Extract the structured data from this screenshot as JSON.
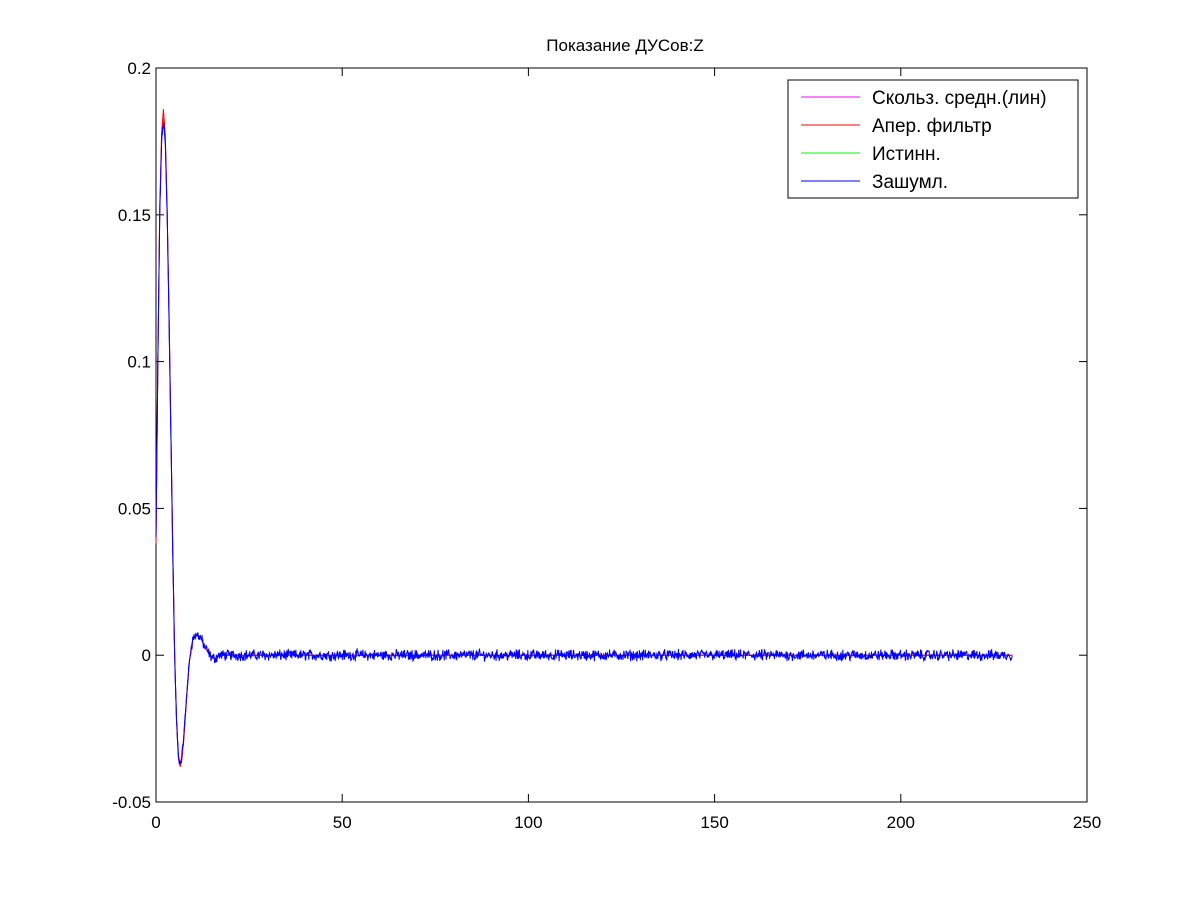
{
  "chart_data": {
    "type": "line",
    "title": "Показание ДУСов:Z",
    "xlabel": "",
    "ylabel": "",
    "xlim": [
      0,
      250
    ],
    "ylim": [
      -0.05,
      0.2
    ],
    "xticks": [
      0,
      50,
      100,
      150,
      200,
      250
    ],
    "xtick_labels": [
      "0",
      "50",
      "100",
      "150",
      "200",
      "250"
    ],
    "yticks": [
      -0.05,
      0,
      0.05,
      0.1,
      0.15,
      0.2
    ],
    "ytick_labels": [
      "-0.05",
      "0",
      "0.05",
      "0.1",
      "0.15",
      "0.2"
    ],
    "grid": false,
    "legend_position": "top-right",
    "series": [
      {
        "name": "Скольз. средн.(лин)",
        "color": "#ff00ff",
        "x": [
          0,
          0.5,
          1,
          1.5,
          2,
          2.5,
          3,
          3.5,
          4,
          4.5,
          5,
          5.5,
          6,
          6.5,
          7,
          7.5,
          8,
          8.5,
          9,
          9.5,
          10,
          11,
          12,
          13,
          14,
          15,
          16,
          17,
          18,
          19,
          20,
          22,
          25,
          30,
          40,
          60,
          100,
          150,
          200,
          230
        ],
        "y": [
          0.04,
          0.1,
          0.15,
          0.175,
          0.183,
          0.175,
          0.15,
          0.115,
          0.075,
          0.035,
          0.0,
          -0.022,
          -0.034,
          -0.037,
          -0.034,
          -0.027,
          -0.018,
          -0.009,
          -0.002,
          0.003,
          0.006,
          0.007,
          0.006,
          0.003,
          0.001,
          -0.001,
          -0.001,
          0.0,
          0.0,
          0.0,
          0.0,
          0.0,
          0.0,
          0.0,
          0.0,
          0.0,
          0.0,
          0.0,
          0.0,
          0.0
        ]
      },
      {
        "name": "Апер. фильтр",
        "color": "#ff0000",
        "x": [
          0,
          0.5,
          1,
          1.5,
          2,
          2.5,
          3,
          3.5,
          4,
          4.5,
          5,
          5.5,
          6,
          6.5,
          7,
          7.5,
          8,
          8.5,
          9,
          9.5,
          10,
          11,
          12,
          13,
          14,
          15,
          16,
          17,
          18,
          19,
          20,
          22,
          25,
          30,
          40,
          60,
          100,
          150,
          200,
          230
        ],
        "y": [
          0.038,
          0.1,
          0.152,
          0.178,
          0.186,
          0.177,
          0.152,
          0.117,
          0.077,
          0.037,
          0.001,
          -0.022,
          -0.035,
          -0.038,
          -0.035,
          -0.028,
          -0.019,
          -0.009,
          -0.002,
          0.003,
          0.006,
          0.007,
          0.006,
          0.003,
          0.001,
          -0.001,
          -0.001,
          0.0,
          0.0,
          0.0,
          0.0,
          0.0,
          0.0,
          0.0,
          0.0,
          0.0,
          0.0,
          0.0,
          0.0,
          0.0
        ]
      },
      {
        "name": "Истинн.",
        "color": "#00ff00",
        "x": [
          0,
          0.5,
          1,
          1.5,
          2,
          2.5,
          3,
          3.5,
          4,
          4.5,
          5,
          5.5,
          6,
          6.5,
          7,
          7.5,
          8,
          8.5,
          9,
          9.5,
          10,
          11,
          12,
          13,
          14,
          15,
          16,
          17,
          18,
          19,
          20,
          22,
          25,
          30,
          40,
          60,
          100,
          150,
          200,
          230
        ],
        "y": [
          0.04,
          0.1,
          0.15,
          0.175,
          0.182,
          0.174,
          0.15,
          0.115,
          0.075,
          0.035,
          0.0,
          -0.022,
          -0.034,
          -0.037,
          -0.034,
          -0.027,
          -0.018,
          -0.009,
          -0.002,
          0.003,
          0.006,
          0.007,
          0.006,
          0.003,
          0.001,
          -0.001,
          -0.001,
          0.0,
          0.0,
          0.0,
          0.0,
          0.0,
          0.0,
          0.0,
          0.0,
          0.0,
          0.0,
          0.0,
          0.0,
          0.0
        ]
      },
      {
        "name": "Зашумл.",
        "color": "#0000ff",
        "x": [
          0,
          0.5,
          1,
          1.5,
          2,
          2.5,
          3,
          3.5,
          4,
          4.5,
          5,
          5.5,
          6,
          6.5,
          7,
          7.5,
          8,
          8.5,
          9,
          9.5,
          10,
          11,
          12,
          13,
          14,
          15,
          16,
          17,
          18,
          19,
          20,
          22,
          25,
          30,
          40,
          60,
          100,
          150,
          200,
          230
        ],
        "y": [
          0.04,
          0.1,
          0.15,
          0.175,
          0.182,
          0.174,
          0.15,
          0.115,
          0.075,
          0.035,
          0.0,
          -0.022,
          -0.034,
          -0.037,
          -0.034,
          -0.027,
          -0.018,
          -0.009,
          -0.002,
          0.003,
          0.006,
          0.007,
          0.006,
          0.003,
          0.001,
          -0.001,
          -0.001,
          0.0,
          0.0,
          0.0,
          0.0,
          0.0,
          0.0,
          0.0,
          0.0,
          0.0,
          0.0,
          0.0,
          0.0,
          0.0
        ],
        "noise_amplitude": 0.0015
      }
    ]
  }
}
